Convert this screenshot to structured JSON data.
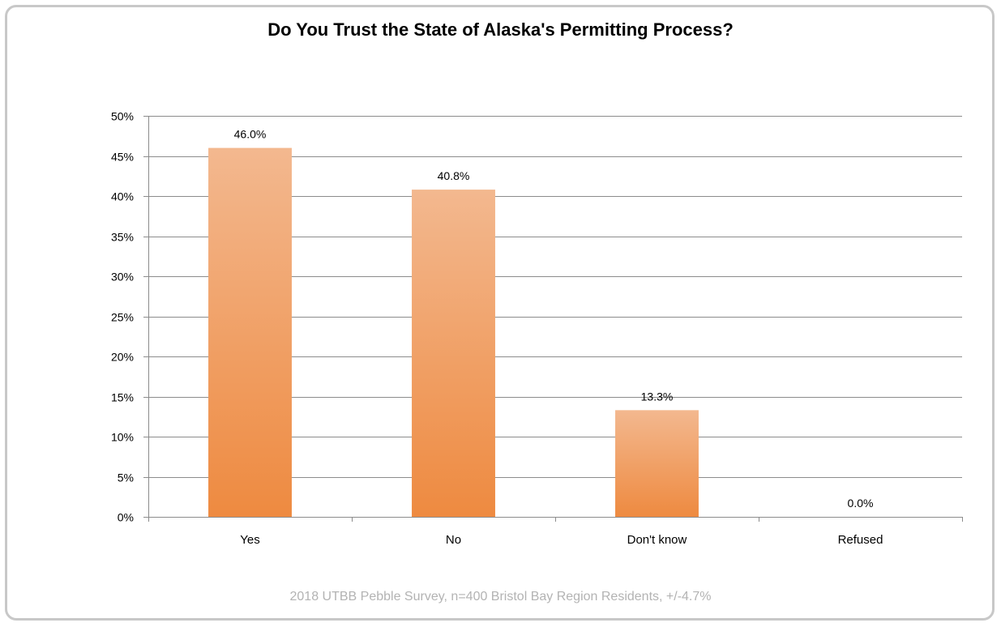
{
  "chart_data": {
    "type": "bar",
    "title": "Do You Trust the State of Alaska's Permitting Process?",
    "subtitle": "2018 UTBB Pebble Survey, n=400 Bristol Bay Region Residents, +/-4.7%",
    "categories": [
      "Yes",
      "No",
      "Don't know",
      "Refused"
    ],
    "values": [
      46.0,
      40.8,
      13.3,
      0.0
    ],
    "data_labels": [
      "46.0%",
      "40.8%",
      "13.3%",
      "0.0%"
    ],
    "y_ticks": [
      "0%",
      "5%",
      "10%",
      "15%",
      "20%",
      "25%",
      "30%",
      "35%",
      "40%",
      "45%",
      "50%"
    ],
    "ylim": [
      0,
      50
    ],
    "xlabel": "",
    "ylabel": "",
    "grid": true,
    "legend": "none",
    "colors": {
      "bar_top": "#f3b88f",
      "bar_bottom": "#ee8a40",
      "gridline": "#8c8c8c"
    }
  }
}
